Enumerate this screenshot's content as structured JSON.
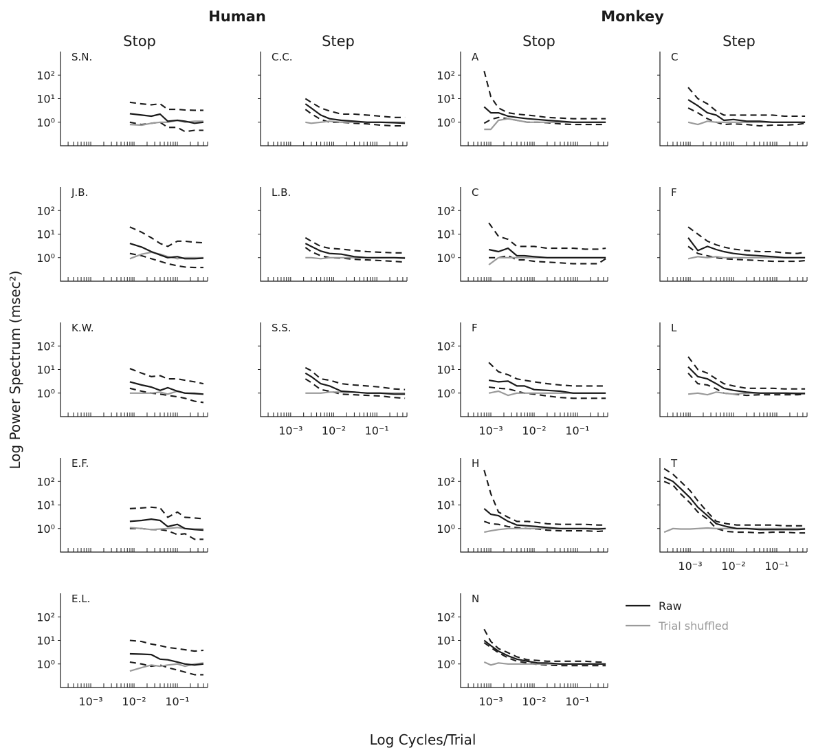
{
  "chart_data": {
    "type": "line",
    "group_titles": [
      "Human",
      "Monkey"
    ],
    "column_titles": [
      "Stop",
      "Step",
      "Stop",
      "Step"
    ],
    "xlabel": "Log Cycles/Trial",
    "ylabel": "Log Power Spectrum (msec²)",
    "x_scale": "log",
    "y_scale": "log",
    "xlim": [
      0.0002,
      0.5
    ],
    "ylim": [
      0.1,
      1000
    ],
    "yticks": [
      "10²",
      "10¹",
      "10⁰"
    ],
    "xticks": [
      "10⁻³",
      "10⁻²",
      "10⁻¹"
    ],
    "legend": {
      "position": "right",
      "entries": [
        {
          "label": "Raw",
          "color": "#1a1a1a",
          "style": "solid"
        },
        {
          "label": "Trial shuffled",
          "color": "#9a9a9a",
          "style": "solid"
        }
      ]
    },
    "colors": {
      "raw": "#1a1a1a",
      "shuffled": "#9a9a9a"
    },
    "panels": [
      {
        "label": "S.N.",
        "column": 0,
        "row": 0,
        "x": [
          0.008,
          0.015,
          0.025,
          0.04,
          0.06,
          0.1,
          0.15,
          0.25,
          0.4
        ],
        "raw": [
          2.3,
          2.0,
          1.8,
          2.2,
          1.1,
          1.2,
          1.1,
          0.9,
          1.0
        ],
        "upper": [
          7.0,
          6.0,
          5.5,
          6.0,
          3.5,
          3.5,
          3.3,
          3.2,
          3.2
        ],
        "lower": [
          1.0,
          0.8,
          0.9,
          1.0,
          0.6,
          0.6,
          0.4,
          0.45,
          0.45
        ],
        "shuffled": [
          0.8,
          0.75,
          0.9,
          1.0,
          1.0,
          1.2,
          1.0,
          1.1,
          1.1
        ],
        "show_xticklabels": false
      },
      {
        "label": "J.B.",
        "column": 0,
        "row": 1,
        "x": [
          0.008,
          0.015,
          0.025,
          0.04,
          0.06,
          0.1,
          0.15,
          0.25,
          0.4
        ],
        "raw": [
          4.0,
          2.8,
          1.8,
          1.3,
          1.0,
          1.1,
          0.9,
          0.9,
          0.95
        ],
        "upper": [
          20.0,
          12.0,
          7.0,
          4.0,
          3.0,
          5.0,
          5.0,
          4.5,
          4.3
        ],
        "lower": [
          1.5,
          1.2,
          0.9,
          0.7,
          0.55,
          0.45,
          0.4,
          0.38,
          0.38
        ],
        "shuffled": [
          0.9,
          1.4,
          1.7,
          1.4,
          1.1,
          0.9,
          1.0,
          1.0,
          1.0
        ],
        "show_xticklabels": false
      },
      {
        "label": "K.W.",
        "column": 0,
        "row": 2,
        "x": [
          0.008,
          0.015,
          0.025,
          0.04,
          0.06,
          0.1,
          0.15,
          0.25,
          0.4
        ],
        "raw": [
          3.0,
          2.2,
          1.8,
          1.3,
          1.7,
          1.2,
          1.0,
          0.95,
          0.9
        ],
        "upper": [
          11.0,
          7.0,
          5.0,
          5.5,
          4.0,
          4.0,
          3.5,
          3.0,
          2.5
        ],
        "lower": [
          1.6,
          1.2,
          1.0,
          0.9,
          0.8,
          0.7,
          0.6,
          0.45,
          0.4
        ],
        "shuffled": [
          1.0,
          1.0,
          1.0,
          1.1,
          0.9,
          1.2,
          1.0,
          1.0,
          0.9
        ],
        "show_xticklabels": false
      },
      {
        "label": "E.F.",
        "column": 0,
        "row": 3,
        "x": [
          0.008,
          0.015,
          0.025,
          0.04,
          0.06,
          0.1,
          0.15,
          0.25,
          0.4
        ],
        "raw": [
          2.0,
          2.2,
          2.5,
          2.2,
          1.2,
          1.5,
          1.0,
          0.9,
          0.85
        ],
        "upper": [
          7.0,
          7.5,
          8.0,
          7.5,
          3.0,
          5.0,
          3.0,
          2.8,
          2.6
        ],
        "lower": [
          1.0,
          1.0,
          0.9,
          0.9,
          0.8,
          0.55,
          0.6,
          0.35,
          0.35
        ],
        "shuffled": [
          1.1,
          1.0,
          0.9,
          0.95,
          1.0,
          1.1,
          1.0,
          0.95,
          0.95
        ],
        "show_xticklabels": false
      },
      {
        "label": "E.L.",
        "column": 0,
        "row": 4,
        "x": [
          0.008,
          0.015,
          0.025,
          0.04,
          0.06,
          0.1,
          0.15,
          0.25,
          0.4
        ],
        "raw": [
          2.7,
          2.6,
          2.5,
          1.6,
          1.5,
          1.2,
          1.0,
          0.9,
          1.0
        ],
        "upper": [
          10.0,
          9.0,
          7.0,
          6.0,
          5.0,
          4.5,
          4.0,
          3.5,
          3.8
        ],
        "lower": [
          1.2,
          1.0,
          0.8,
          0.9,
          0.7,
          0.55,
          0.45,
          0.35,
          0.35
        ],
        "shuffled": [
          0.5,
          0.7,
          0.9,
          0.8,
          0.9,
          1.0,
          0.8,
          1.0,
          1.1
        ],
        "show_xticklabels": true
      },
      {
        "label": "C.C.",
        "column": 1,
        "row": 0,
        "x": [
          0.0022,
          0.003,
          0.005,
          0.008,
          0.015,
          0.03,
          0.06,
          0.12,
          0.25,
          0.45
        ],
        "raw": [
          6.0,
          4.0,
          2.0,
          1.4,
          1.2,
          1.1,
          1.0,
          1.0,
          0.95,
          0.9
        ],
        "upper": [
          10.0,
          7.0,
          4.0,
          3.0,
          2.2,
          2.2,
          2.0,
          1.8,
          1.6,
          1.6
        ],
        "lower": [
          3.5,
          2.3,
          1.3,
          1.0,
          1.0,
          0.9,
          0.85,
          0.75,
          0.7,
          0.7
        ],
        "shuffled": [
          1.0,
          0.9,
          1.0,
          1.1,
          1.0,
          1.0,
          1.0,
          1.0,
          1.0,
          1.0
        ],
        "show_xticklabels": false
      },
      {
        "label": "L.B.",
        "column": 1,
        "row": 1,
        "x": [
          0.0022,
          0.003,
          0.005,
          0.008,
          0.015,
          0.03,
          0.06,
          0.12,
          0.25,
          0.45
        ],
        "raw": [
          4.0,
          3.0,
          1.9,
          1.5,
          1.4,
          1.1,
          1.0,
          1.0,
          1.0,
          0.95
        ],
        "upper": [
          7.0,
          5.0,
          3.0,
          2.5,
          2.3,
          2.0,
          1.8,
          1.7,
          1.6,
          1.6
        ],
        "lower": [
          2.7,
          1.8,
          1.2,
          1.0,
          0.95,
          0.85,
          0.8,
          0.75,
          0.7,
          0.65
        ],
        "shuffled": [
          1.0,
          1.0,
          0.9,
          1.0,
          1.0,
          1.0,
          1.0,
          1.0,
          1.0,
          1.0
        ],
        "show_xticklabels": false
      },
      {
        "label": "S.S.",
        "column": 1,
        "row": 2,
        "x": [
          0.0022,
          0.003,
          0.005,
          0.008,
          0.015,
          0.03,
          0.06,
          0.12,
          0.25,
          0.45
        ],
        "raw": [
          7.0,
          5.0,
          2.5,
          2.0,
          1.2,
          1.1,
          1.0,
          1.0,
          0.9,
          0.9
        ],
        "upper": [
          12.0,
          9.0,
          4.0,
          3.5,
          2.5,
          2.2,
          2.0,
          1.8,
          1.5,
          1.4
        ],
        "lower": [
          4.0,
          2.8,
          1.4,
          1.2,
          0.9,
          0.85,
          0.8,
          0.75,
          0.65,
          0.6
        ],
        "shuffled": [
          1.0,
          1.0,
          1.0,
          1.1,
          1.1,
          1.1,
          1.0,
          1.0,
          1.0,
          1.0
        ],
        "show_xticklabels": true
      },
      {
        "label": "A",
        "column": 2,
        "row": 0,
        "x": [
          0.0007,
          0.001,
          0.0015,
          0.0025,
          0.004,
          0.007,
          0.012,
          0.02,
          0.04,
          0.08,
          0.15,
          0.3,
          0.45
        ],
        "raw": [
          4.5,
          2.5,
          2.5,
          1.8,
          1.6,
          1.4,
          1.3,
          1.2,
          1.1,
          1.0,
          1.0,
          1.0,
          1.0
        ],
        "upper": [
          150.0,
          12.0,
          4.0,
          2.5,
          2.2,
          2.0,
          1.8,
          1.6,
          1.5,
          1.4,
          1.4,
          1.4,
          1.4
        ],
        "lower": [
          0.9,
          1.3,
          1.6,
          1.4,
          1.2,
          1.0,
          1.0,
          0.95,
          0.85,
          0.8,
          0.8,
          0.8,
          0.8
        ],
        "shuffled": [
          0.5,
          0.5,
          1.2,
          1.4,
          1.2,
          1.0,
          1.0,
          1.0,
          1.0,
          1.0,
          1.0,
          1.0,
          1.0
        ],
        "show_xticklabels": false
      },
      {
        "label": "C",
        "column": 2,
        "row": 1,
        "x": [
          0.0009,
          0.0015,
          0.0025,
          0.004,
          0.006,
          0.01,
          0.02,
          0.04,
          0.08,
          0.15,
          0.3,
          0.45
        ],
        "raw": [
          2.2,
          1.8,
          2.5,
          1.2,
          1.2,
          1.1,
          1.0,
          1.0,
          1.0,
          1.0,
          1.0,
          1.0
        ],
        "upper": [
          30.0,
          8.0,
          6.0,
          3.0,
          3.0,
          3.0,
          2.5,
          2.5,
          2.5,
          2.3,
          2.3,
          2.5
        ],
        "lower": [
          1.0,
          1.0,
          1.2,
          0.8,
          0.8,
          0.7,
          0.65,
          0.6,
          0.55,
          0.55,
          0.55,
          0.9
        ],
        "shuffled": [
          0.5,
          1.0,
          1.0,
          1.0,
          1.0,
          1.0,
          1.0,
          1.0,
          1.0,
          1.0,
          1.0,
          1.0
        ],
        "show_xticklabels": false
      },
      {
        "label": "F",
        "column": 2,
        "row": 2,
        "x": [
          0.0009,
          0.0015,
          0.0025,
          0.004,
          0.006,
          0.01,
          0.02,
          0.04,
          0.08,
          0.15,
          0.3,
          0.45
        ],
        "raw": [
          3.5,
          3.0,
          3.2,
          2.0,
          2.0,
          1.4,
          1.3,
          1.2,
          1.0,
          1.0,
          1.0,
          1.0
        ],
        "upper": [
          20.0,
          8.0,
          6.0,
          4.0,
          3.5,
          3.0,
          2.5,
          2.2,
          2.0,
          2.0,
          2.0,
          2.0
        ],
        "lower": [
          1.8,
          1.6,
          1.5,
          1.2,
          1.0,
          0.9,
          0.75,
          0.65,
          0.6,
          0.6,
          0.6,
          0.6
        ],
        "shuffled": [
          1.0,
          1.2,
          0.8,
          1.0,
          1.0,
          1.0,
          1.0,
          1.0,
          1.0,
          1.0,
          1.0,
          1.0
        ],
        "show_xticklabels": true
      },
      {
        "label": "H",
        "column": 2,
        "row": 3,
        "x": [
          0.0007,
          0.001,
          0.0015,
          0.0025,
          0.004,
          0.007,
          0.012,
          0.02,
          0.04,
          0.08,
          0.15,
          0.3,
          0.45
        ],
        "raw": [
          7.0,
          4.0,
          3.5,
          2.0,
          1.4,
          1.3,
          1.2,
          1.1,
          1.0,
          1.0,
          1.0,
          0.95,
          1.0
        ],
        "upper": [
          300.0,
          30.0,
          5.0,
          3.0,
          2.0,
          2.0,
          1.8,
          1.6,
          1.5,
          1.5,
          1.5,
          1.4,
          1.4
        ],
        "lower": [
          2.0,
          1.6,
          1.5,
          1.2,
          1.1,
          1.0,
          0.95,
          0.85,
          0.8,
          0.8,
          0.8,
          0.75,
          0.8
        ],
        "shuffled": [
          0.7,
          0.8,
          0.9,
          1.0,
          1.0,
          1.0,
          1.0,
          1.0,
          1.0,
          1.0,
          1.0,
          1.0,
          1.0
        ],
        "show_xticklabels": false
      },
      {
        "label": "N",
        "column": 2,
        "row": 4,
        "x": [
          0.0007,
          0.001,
          0.0015,
          0.0025,
          0.004,
          0.007,
          0.012,
          0.02,
          0.04,
          0.08,
          0.15,
          0.3,
          0.45
        ],
        "raw": [
          10.0,
          6.0,
          3.5,
          2.2,
          1.6,
          1.3,
          1.1,
          1.1,
          1.0,
          1.0,
          1.0,
          1.0,
          1.0
        ],
        "upper": [
          30.0,
          9.0,
          4.5,
          3.0,
          2.0,
          1.5,
          1.4,
          1.3,
          1.3,
          1.3,
          1.3,
          1.2,
          1.2
        ],
        "lower": [
          8.0,
          5.0,
          3.0,
          1.8,
          1.3,
          1.1,
          0.95,
          0.9,
          0.85,
          0.85,
          0.85,
          0.85,
          0.85
        ],
        "shuffled": [
          1.2,
          0.9,
          1.1,
          1.0,
          1.0,
          1.0,
          1.0,
          1.0,
          1.0,
          1.0,
          1.0,
          1.0,
          1.0
        ],
        "show_xticklabels": true
      },
      {
        "label": "C",
        "column": 3,
        "row": 0,
        "x": [
          0.0009,
          0.0015,
          0.0025,
          0.004,
          0.006,
          0.01,
          0.02,
          0.04,
          0.08,
          0.15,
          0.3,
          0.45
        ],
        "raw": [
          9.0,
          5.0,
          2.5,
          2.0,
          1.2,
          1.3,
          1.1,
          1.1,
          1.0,
          1.0,
          1.0,
          1.0
        ],
        "upper": [
          30.0,
          10.0,
          6.0,
          3.0,
          2.0,
          2.0,
          2.0,
          2.0,
          2.0,
          1.8,
          1.8,
          1.8
        ],
        "lower": [
          4.0,
          2.5,
          1.4,
          1.0,
          0.8,
          0.85,
          0.8,
          0.7,
          0.75,
          0.75,
          0.8,
          0.9
        ],
        "shuffled": [
          1.0,
          0.8,
          1.1,
          1.0,
          1.0,
          1.0,
          1.0,
          1.0,
          1.0,
          1.0,
          1.0,
          1.0
        ],
        "show_xticklabels": false
      },
      {
        "label": "F",
        "column": 3,
        "row": 1,
        "x": [
          0.0009,
          0.0015,
          0.0025,
          0.004,
          0.006,
          0.01,
          0.02,
          0.04,
          0.08,
          0.15,
          0.3,
          0.45
        ],
        "raw": [
          7.0,
          2.0,
          3.0,
          2.2,
          1.8,
          1.5,
          1.3,
          1.2,
          1.1,
          1.0,
          1.0,
          1.0
        ],
        "upper": [
          20.0,
          10.0,
          5.0,
          3.5,
          2.8,
          2.3,
          2.0,
          1.8,
          1.8,
          1.6,
          1.5,
          1.7
        ],
        "lower": [
          3.0,
          1.5,
          1.2,
          1.0,
          0.9,
          0.85,
          0.8,
          0.75,
          0.7,
          0.7,
          0.7,
          0.75
        ],
        "shuffled": [
          0.9,
          1.1,
          1.0,
          1.1,
          1.0,
          1.0,
          1.0,
          1.0,
          1.0,
          1.0,
          1.0,
          1.0
        ],
        "show_xticklabels": false
      },
      {
        "label": "L",
        "column": 3,
        "row": 2,
        "x": [
          0.0009,
          0.0015,
          0.0025,
          0.004,
          0.006,
          0.01,
          0.02,
          0.04,
          0.08,
          0.15,
          0.3,
          0.45
        ],
        "raw": [
          13.0,
          5.0,
          4.0,
          2.5,
          1.6,
          1.3,
          1.1,
          1.0,
          1.0,
          1.0,
          0.95,
          0.95
        ],
        "upper": [
          35.0,
          10.0,
          7.0,
          4.0,
          2.5,
          2.0,
          1.6,
          1.6,
          1.6,
          1.5,
          1.5,
          1.5
        ],
        "lower": [
          7.0,
          2.5,
          2.2,
          1.5,
          1.0,
          0.9,
          0.8,
          0.85,
          0.85,
          0.85,
          0.85,
          0.9
        ],
        "shuffled": [
          0.9,
          1.0,
          0.85,
          1.1,
          1.0,
          0.9,
          1.0,
          1.0,
          1.0,
          1.0,
          1.0,
          1.0
        ],
        "show_xticklabels": false
      },
      {
        "label": "T",
        "column": 3,
        "row": 3,
        "x": [
          0.00025,
          0.0004,
          0.0006,
          0.001,
          0.0015,
          0.0025,
          0.004,
          0.007,
          0.012,
          0.02,
          0.04,
          0.08,
          0.15,
          0.3,
          0.45
        ],
        "raw": [
          150.0,
          100.0,
          50.0,
          20.0,
          8.0,
          3.5,
          1.6,
          1.2,
          1.0,
          1.0,
          0.9,
          0.9,
          0.9,
          0.9,
          0.95
        ],
        "upper": [
          350.0,
          200.0,
          100.0,
          40.0,
          15.0,
          5.0,
          2.0,
          1.6,
          1.4,
          1.4,
          1.4,
          1.4,
          1.3,
          1.3,
          1.3
        ],
        "lower": [
          100.0,
          70.0,
          30.0,
          12.0,
          5.0,
          2.5,
          1.0,
          0.75,
          0.7,
          0.7,
          0.65,
          0.7,
          0.7,
          0.65,
          0.65
        ],
        "shuffled": [
          0.7,
          1.0,
          0.95,
          0.95,
          1.0,
          1.05,
          1.0,
          1.0,
          1.0,
          1.0,
          1.0,
          1.0,
          1.0,
          1.0,
          1.0
        ],
        "show_xticklabels": true
      }
    ]
  }
}
